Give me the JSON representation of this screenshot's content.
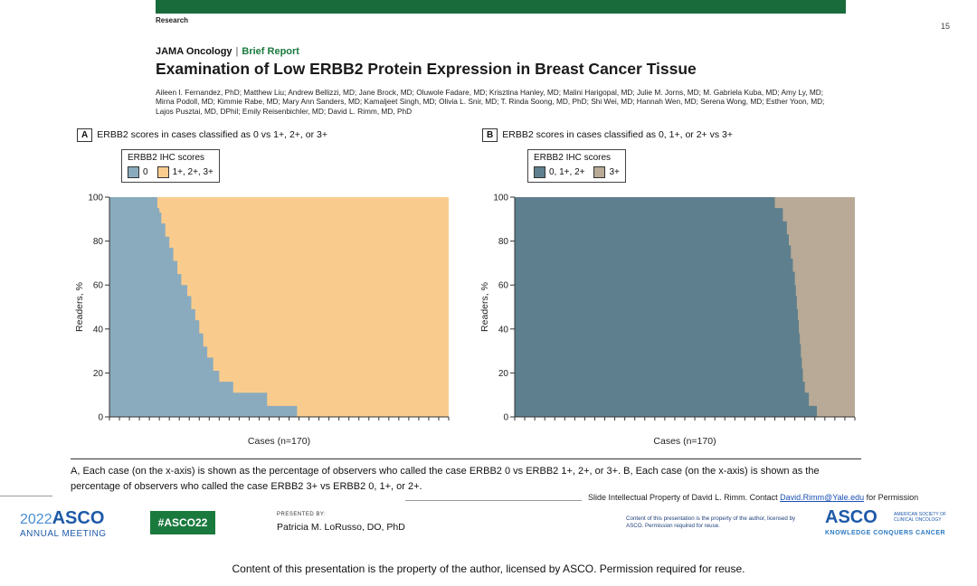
{
  "header": {
    "section": "Research",
    "slide_number": "15",
    "journal": "JAMA Oncology",
    "separator": "|",
    "article_type": "Brief Report",
    "title": "Examination of Low ERBB2 Protein Expression in Breast Cancer Tissue",
    "authors": "Aileen I. Fernandez, PhD; Matthew Liu; Andrew Bellizzi, MD; Jane Brock, MD; Oluwole Fadare, MD; Krisztina Hanley, MD; Malini Harigopal, MD; Julie M. Jorns, MD; M. Gabriela Kuba, MD; Amy Ly, MD; Mirna Podoll, MD; Kimmie Rabe, MD; Mary Ann Sanders, MD; Kamaljeet Singh, MD; Olivia L. Snir, MD; T. Rinda Soong, MD, PhD; Shi Wei, MD; Hannah Wen, MD; Serena Wong, MD; Esther Yoon, MD; Lajos Pusztai, MD, DPhil; Emily Reisenbichler, MD; David L. Rimm, MD, PhD"
  },
  "chart_data": [
    {
      "type": "area",
      "panel": "A",
      "title": "ERBB2 scores in cases classified as 0 vs 1+, 2+, or 3+",
      "legend_title": "ERBB2 IHC scores",
      "xlabel": "Cases (n=170)",
      "ylabel": "Readers, %",
      "ylim": [
        0,
        100
      ],
      "yticks": [
        "0",
        "20",
        "40",
        "60",
        "80",
        "100"
      ],
      "xlim": [
        0,
        170
      ],
      "x_tick_count": 34,
      "legend_placement": "top-left",
      "grid": false,
      "series": [
        {
          "name": "0",
          "color": "#8aabbd"
        },
        {
          "name": "1+, 2+, 3+",
          "color": "#f9cc8e"
        }
      ],
      "steps": [
        {
          "x_start": 0,
          "x_end": 24,
          "y": 100
        },
        {
          "x_start": 24,
          "x_end": 25,
          "y": 95
        },
        {
          "x_start": 25,
          "x_end": 26,
          "y": 93
        },
        {
          "x_start": 26,
          "x_end": 28,
          "y": 88
        },
        {
          "x_start": 28,
          "x_end": 30,
          "y": 82
        },
        {
          "x_start": 30,
          "x_end": 32,
          "y": 77
        },
        {
          "x_start": 32,
          "x_end": 34,
          "y": 71
        },
        {
          "x_start": 34,
          "x_end": 36,
          "y": 65
        },
        {
          "x_start": 36,
          "x_end": 39,
          "y": 60
        },
        {
          "x_start": 39,
          "x_end": 41,
          "y": 55
        },
        {
          "x_start": 41,
          "x_end": 43,
          "y": 49
        },
        {
          "x_start": 43,
          "x_end": 45,
          "y": 44
        },
        {
          "x_start": 45,
          "x_end": 47,
          "y": 38
        },
        {
          "x_start": 47,
          "x_end": 49,
          "y": 32
        },
        {
          "x_start": 49,
          "x_end": 52,
          "y": 27
        },
        {
          "x_start": 52,
          "x_end": 55,
          "y": 21
        },
        {
          "x_start": 55,
          "x_end": 62,
          "y": 16
        },
        {
          "x_start": 62,
          "x_end": 79,
          "y": 11
        },
        {
          "x_start": 79,
          "x_end": 94,
          "y": 5
        },
        {
          "x_start": 94,
          "x_end": 170,
          "y": 0
        }
      ]
    },
    {
      "type": "area",
      "panel": "B",
      "title": "ERBB2 scores in cases classified as 0, 1+, or 2+ vs 3+",
      "legend_title": "ERBB2 IHC scores",
      "xlabel": "Cases (n=170)",
      "ylabel": "Readers, %",
      "ylim": [
        0,
        100
      ],
      "yticks": [
        "0",
        "20",
        "40",
        "60",
        "80",
        "100"
      ],
      "xlim": [
        0,
        170
      ],
      "x_tick_count": 34,
      "legend_placement": "top-left",
      "grid": false,
      "series": [
        {
          "name": "0, 1+, 2+",
          "color": "#5e7f8d"
        },
        {
          "name": "3+",
          "color": "#b8aa96"
        }
      ],
      "steps": [
        {
          "x_start": 0,
          "x_end": 130,
          "y": 100
        },
        {
          "x_start": 130,
          "x_end": 134,
          "y": 95
        },
        {
          "x_start": 134,
          "x_end": 136,
          "y": 89
        },
        {
          "x_start": 136,
          "x_end": 137,
          "y": 83
        },
        {
          "x_start": 137,
          "x_end": 138,
          "y": 78
        },
        {
          "x_start": 138,
          "x_end": 139,
          "y": 72
        },
        {
          "x_start": 139,
          "x_end": 140,
          "y": 66
        },
        {
          "x_start": 140,
          "x_end": 140.5,
          "y": 60
        },
        {
          "x_start": 140.5,
          "x_end": 141,
          "y": 55
        },
        {
          "x_start": 141,
          "x_end": 141.5,
          "y": 49
        },
        {
          "x_start": 141.5,
          "x_end": 142,
          "y": 44
        },
        {
          "x_start": 142,
          "x_end": 142.5,
          "y": 38
        },
        {
          "x_start": 142.5,
          "x_end": 143,
          "y": 33
        },
        {
          "x_start": 143,
          "x_end": 143.5,
          "y": 27
        },
        {
          "x_start": 143.5,
          "x_end": 144,
          "y": 22
        },
        {
          "x_start": 144,
          "x_end": 145,
          "y": 16
        },
        {
          "x_start": 145,
          "x_end": 147,
          "y": 11
        },
        {
          "x_start": 147,
          "x_end": 151,
          "y": 5
        },
        {
          "x_start": 151,
          "x_end": 170,
          "y": 0
        }
      ]
    }
  ],
  "caption": "A, Each case (on the x-axis) is shown as the percentage of observers who called the case ERBB2 0 vs ERBB2 1+, 2+, or 3+. B, Each case (on the x-axis) is shown as the percentage of observers who called the case ERBB2 3+ vs ERBB2 0, 1+, or 2+.",
  "footer": {
    "ip_prefix": "Slide Intellectual Property of David L. Rimm.  Contact ",
    "ip_email": "David.Rimm@Yale.edu",
    "ip_suffix": " for Permission",
    "meeting_year": "2022",
    "meeting_org": "ASCO",
    "meeting_name": "ANNUAL MEETING",
    "hashtag": "#ASCO22",
    "presented_by_label": "PRESENTED BY:",
    "presenter": "Patricia M. LoRusso, DO, PhD",
    "content_notice_small": "Content of this presentation is the property of the author, licensed by ASCO. Permission required for reuse.",
    "asco_logo": "ASCO",
    "asco_logo_sub": "AMERICAN SOCIETY OF CLINICAL ONCOLOGY",
    "asco_tagline": "KNOWLEDGE CONQUERS CANCER",
    "content_notice": "Content of this presentation is the property of the author, licensed by ASCO. Permission required for reuse."
  }
}
